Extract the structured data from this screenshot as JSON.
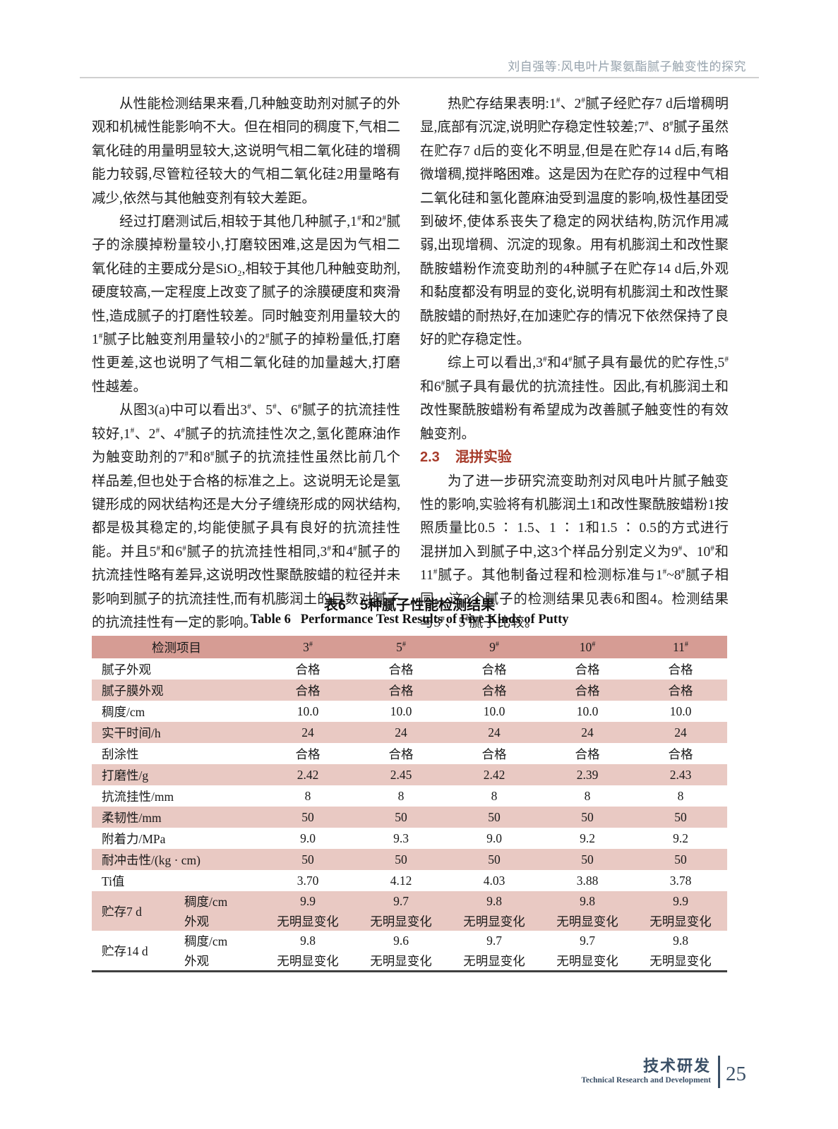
{
  "header": {
    "running_head": "刘自强等:风电叶片聚氨酯腻子触变性的探究"
  },
  "left_column": {
    "paragraphs": [
      "从性能检测结果来看,几种触变助剂对腻子的外观和机械性能影响不大。但在相同的稠度下,气相二氧化硅的用量明显较大,这说明气相二氧化硅的增稠能力较弱,尽管粒径较大的气相二氧化硅2用量略有减少,依然与其他触变剂有较大差距。",
      "经过打磨测试后,相较于其他几种腻子,1#和2#腻子的涂膜掉粉量较小,打磨较困难,这是因为气相二氧化硅的主要成分是SiO₂,相较于其他几种触变助剂,硬度较高,一定程度上改变了腻子的涂膜硬度和爽滑性,造成腻子的打磨性较差。同时触变剂用量较大的1#腻子比触变剂用量较小的2#腻子的掉粉量低,打磨性更差,这也说明了气相二氧化硅的加量越大,打磨性越差。",
      "从图3(a)中可以看出3#、5#、6#腻子的抗流挂性较好,1#、2#、4#腻子的抗流挂性次之,氢化蓖麻油作为触变助剂的7#和8#腻子的抗流挂性虽然比前几个样品差,但也处于合格的标准之上。这说明无论是氢键形成的网状结构还是大分子缠绕形成的网状结构,都是极其稳定的,均能使腻子具有良好的抗流挂性能。并且5#和6#腻子的抗流挂性相同,3#和4#腻子的抗流挂性略有差异,这说明改性聚酰胺蜡的粒径并未影响到腻子的抗流挂性,而有机膨润土的目数对腻子的抗流挂性有一定的影响。"
    ]
  },
  "right_column": {
    "paragraphs": [
      "热贮存结果表明:1#、2#腻子经贮存7 d后增稠明显,底部有沉淀,说明贮存稳定性较差;7#、8#腻子虽然在贮存7 d后的变化不明显,但是在贮存14 d后,有略微增稠,搅拌略困难。这是因为在贮存的过程中气相二氧化硅和氢化蓖麻油受到温度的影响,极性基团受到破坏,使体系丧失了稳定的网状结构,防沉作用减弱,出现增稠、沉淀的现象。用有机膨润土和改性聚酰胺蜡粉作流变助剂的4种腻子在贮存14 d后,外观和黏度都没有明显的变化,说明有机膨润土和改性聚酰胺蜡的耐热好,在加速贮存的情况下依然保持了良好的贮存稳定性。",
      "综上可以看出,3#和4#腻子具有最优的贮存性,5#和6#腻子具有最优的抗流挂性。因此,有机膨润土和改性聚酰胺蜡粉有希望成为改善腻子触变性的有效触变剂。",
      "为了进一步研究流变助剂对风电叶片腻子触变性的影响,实验将有机膨润土1和改性聚酰胺蜡粉1按照质量比0.5 ∶ 1.5、1 ∶ 1和1.5 ∶ 0.5的方式进行混拼加入到腻子中,这3个样品分别定义为9#、10#和11#腻子。其他制备过程和检测标准与1#~8#腻子相同。这3个腻子的检测结果见表6和图4。检测结果与3#、5#腻子比较。"
    ],
    "section": {
      "number": "2.3",
      "title": "混拼实验"
    }
  },
  "table": {
    "title_cn": "表6　5种腻子性能检测结果",
    "title_en": "Table 6   Performance Test Results of Five Kinds of Putty",
    "header": [
      "检测项目",
      "3#",
      "5#",
      "9#",
      "10#",
      "11#"
    ],
    "rows": [
      {
        "label": "腻子外观",
        "values": [
          "合格",
          "合格",
          "合格",
          "合格",
          "合格"
        ]
      },
      {
        "label": "腻子膜外观",
        "values": [
          "合格",
          "合格",
          "合格",
          "合格",
          "合格"
        ]
      },
      {
        "label": "稠度/cm",
        "values": [
          "10.0",
          "10.0",
          "10.0",
          "10.0",
          "10.0"
        ]
      },
      {
        "label": "实干时间/h",
        "values": [
          "24",
          "24",
          "24",
          "24",
          "24"
        ]
      },
      {
        "label": "刮涂性",
        "values": [
          "合格",
          "合格",
          "合格",
          "合格",
          "合格"
        ]
      },
      {
        "label": "打磨性/g",
        "values": [
          "2.42",
          "2.45",
          "2.42",
          "2.39",
          "2.43"
        ]
      },
      {
        "label": "抗流挂性/mm",
        "values": [
          "8",
          "8",
          "8",
          "8",
          "8"
        ]
      },
      {
        "label": "柔韧性/mm",
        "values": [
          "50",
          "50",
          "50",
          "50",
          "50"
        ]
      },
      {
        "label": "附着力/MPa",
        "values": [
          "9.0",
          "9.3",
          "9.0",
          "9.2",
          "9.2"
        ]
      },
      {
        "label": "耐冲击性/(kg · cm)",
        "values": [
          "50",
          "50",
          "50",
          "50",
          "50"
        ]
      },
      {
        "label": "Ti值",
        "values": [
          "3.70",
          "4.12",
          "4.03",
          "3.88",
          "3.78"
        ]
      }
    ],
    "group_rows": [
      {
        "label": "贮存7 d",
        "subrows": [
          {
            "label": "稠度/cm",
            "values": [
              "9.9",
              "9.7",
              "9.8",
              "9.8",
              "9.9"
            ]
          },
          {
            "label": "外观",
            "values": [
              "无明显变化",
              "无明显变化",
              "无明显变化",
              "无明显变化",
              "无明显变化"
            ]
          }
        ]
      },
      {
        "label": "贮存14 d",
        "subrows": [
          {
            "label": "稠度/cm",
            "values": [
              "9.8",
              "9.6",
              "9.7",
              "9.7",
              "9.8"
            ]
          },
          {
            "label": "外观",
            "values": [
              "无明显变化",
              "无明显变化",
              "无明显变化",
              "无明显变化",
              "无明显变化"
            ]
          }
        ]
      }
    ]
  },
  "footer": {
    "section_cn": "技术研发",
    "section_en": "Technical Research and Development",
    "page_number": "25"
  },
  "colors": {
    "table_header_bg": "#d69c94",
    "table_stripe_bg": "#e9c9c3",
    "section_heading": "#a63b2a",
    "running_head": "#96a2ac",
    "footer": "#3a4f66"
  }
}
